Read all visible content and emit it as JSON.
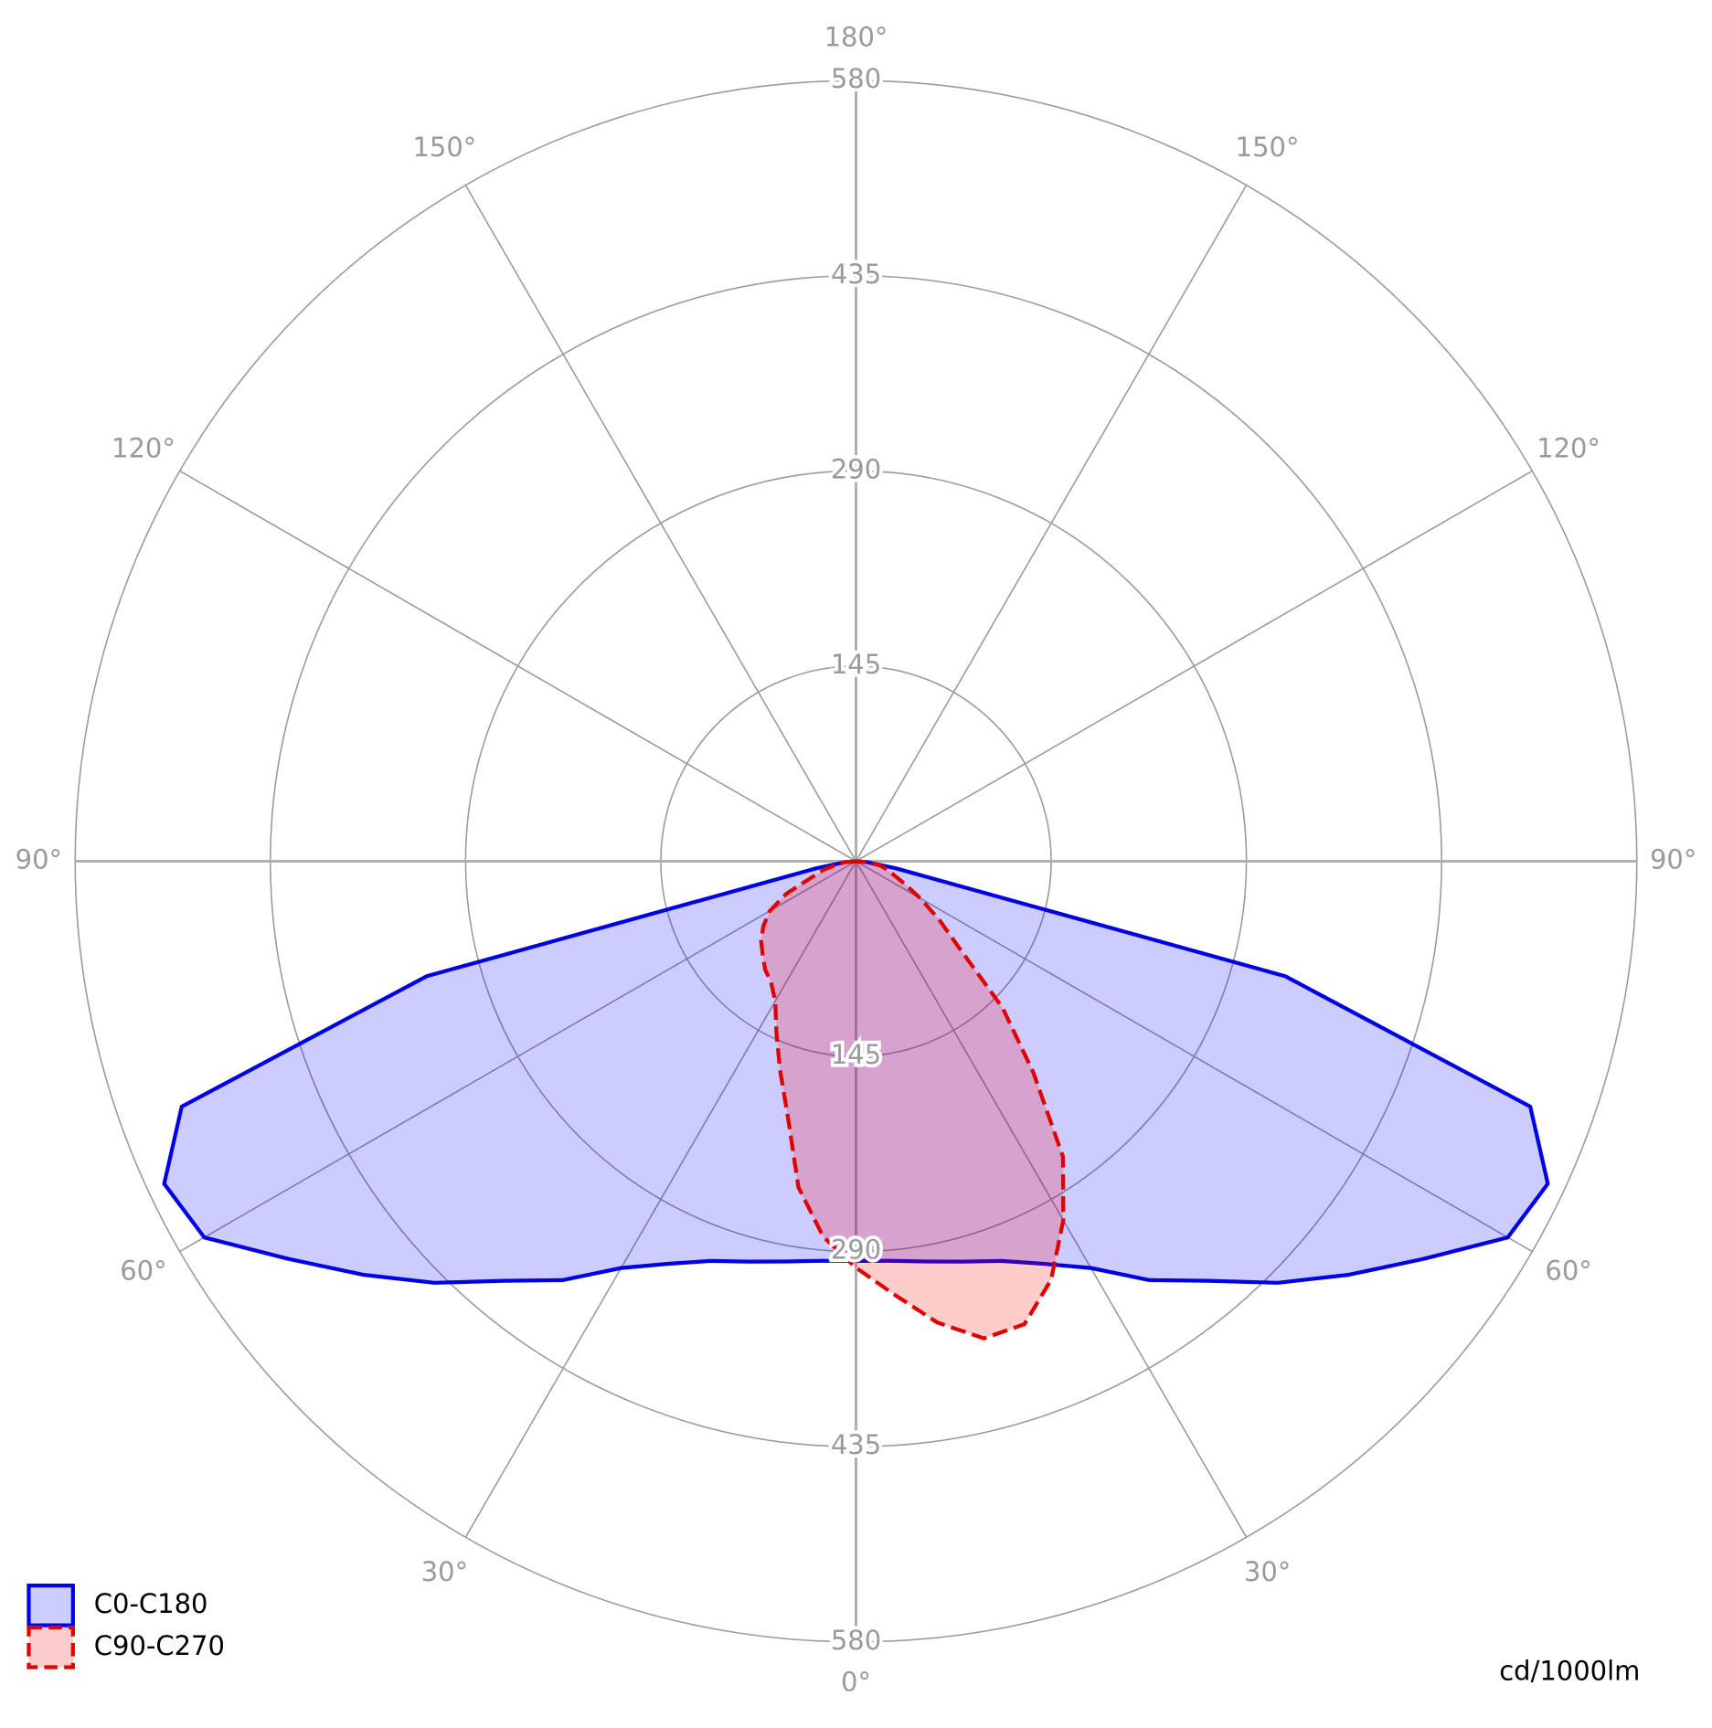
{
  "chart_data": {
    "type": "polar",
    "unit": "cd/1000lm",
    "rlim": [
      0,
      580
    ],
    "rticks": [
      145,
      290,
      435,
      580
    ],
    "angle_ticks": [
      {
        "value": 0,
        "label": "0°"
      },
      {
        "value": 30,
        "label": "30°"
      },
      {
        "value": 60,
        "label": "60°"
      },
      {
        "value": 90,
        "label": "90°"
      },
      {
        "value": 120,
        "label": "120°"
      },
      {
        "value": 150,
        "label": "150°"
      },
      {
        "value": 180,
        "label": "180°"
      }
    ],
    "legend": "bottom-left",
    "x": [
      -90,
      -85,
      -80,
      -75,
      -70,
      -65,
      -60,
      -55,
      -50,
      -45,
      -40,
      -35,
      -30,
      -25,
      -20,
      -15,
      -10,
      -5,
      0,
      5,
      10,
      15,
      20,
      25,
      30,
      35,
      40,
      45,
      50,
      55,
      60,
      65,
      70,
      75,
      80,
      85,
      90
    ],
    "series": [
      {
        "name": "C0-C180",
        "color": "#0000e6",
        "fill": "rgba(0,0,255,0.2)",
        "dashed": false,
        "values": [
          0,
          8,
          30,
          330,
          533,
          567,
          559,
          515,
          478,
          443,
          407,
          380,
          349,
          330,
          316,
          308,
          302,
          298,
          297,
          298,
          302,
          308,
          316,
          330,
          349,
          380,
          407,
          443,
          478,
          515,
          559,
          567,
          533,
          330,
          30,
          8,
          0
        ]
      },
      {
        "name": "C90-C270",
        "color": "#e00000",
        "fill": "rgba(255,0,0,0.2)",
        "dashed": true,
        "values": [
          0,
          8,
          15,
          25,
          35,
          57,
          74,
          84,
          92,
          98,
          105,
          110,
          120,
          140,
          165,
          196,
          246,
          280,
          302,
          323,
          348,
          367,
          366,
          343,
          308,
          268,
          205,
          154,
          100,
          75,
          55,
          40,
          30,
          24,
          18,
          8,
          0
        ]
      }
    ]
  }
}
